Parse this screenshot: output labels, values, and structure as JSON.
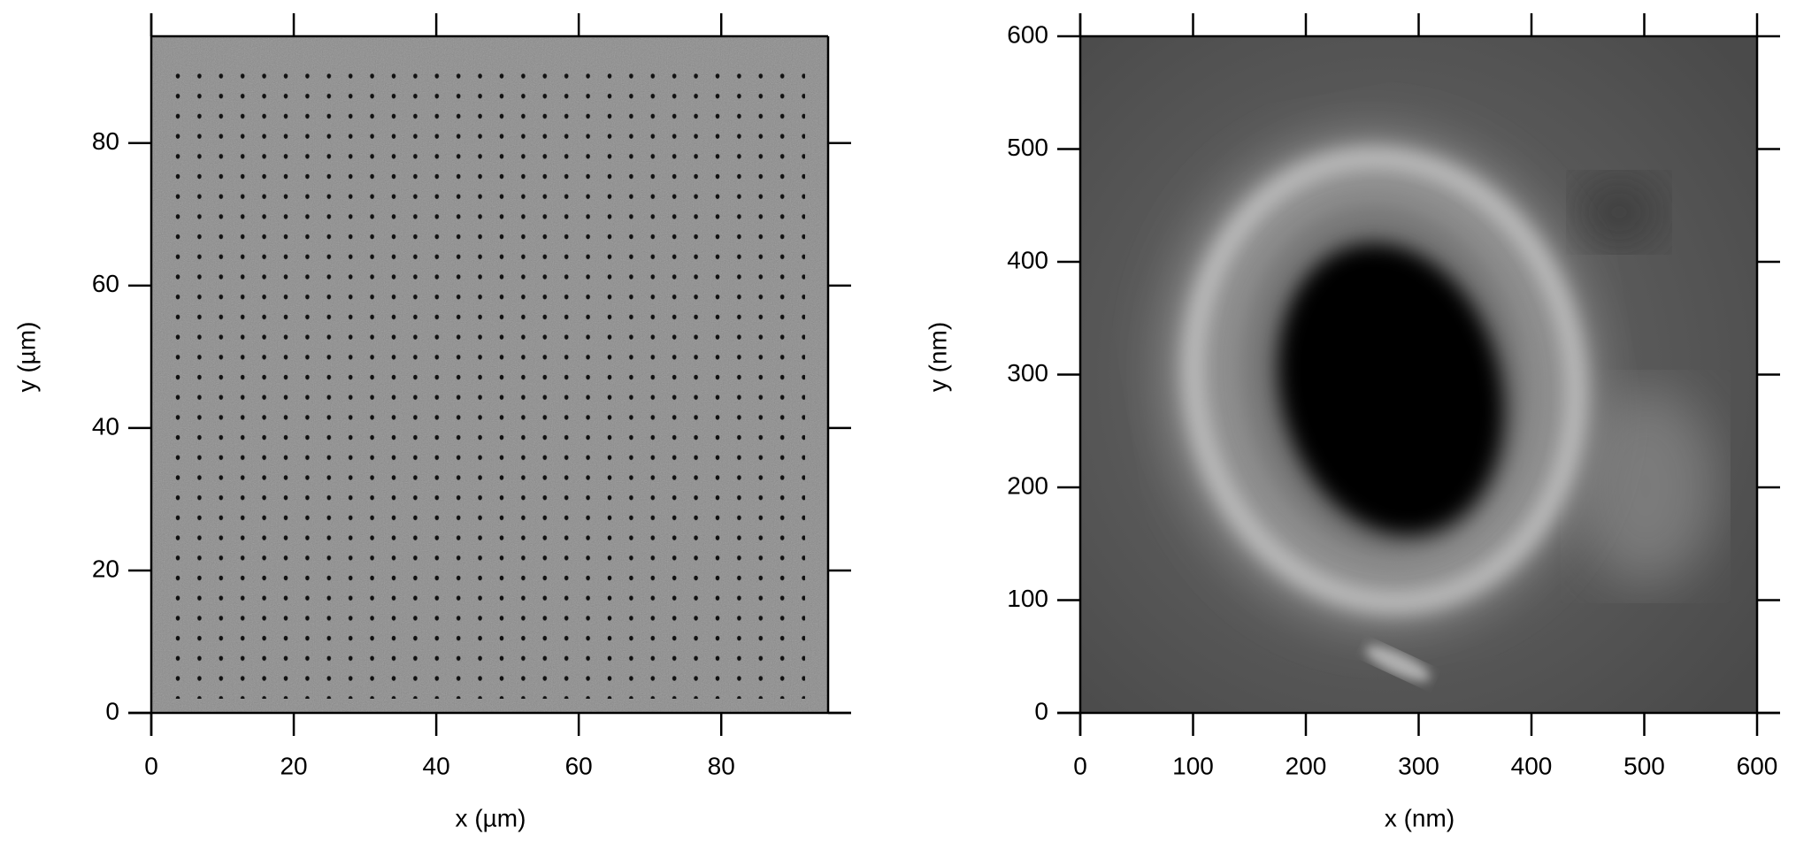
{
  "chart_data": [
    {
      "type": "image",
      "x_label": "x (µm)",
      "y_label": "y (µm)",
      "xlim": [
        0,
        95
      ],
      "ylim": [
        0,
        95
      ],
      "xticks": [
        0,
        20,
        40,
        60,
        80
      ],
      "yticks": [
        0,
        20,
        40,
        60,
        80
      ]
    },
    {
      "type": "image",
      "x_label": "x (nm)",
      "y_label": "y (nm)",
      "xlim": [
        0,
        600
      ],
      "ylim": [
        0,
        600
      ],
      "xticks": [
        0,
        100,
        200,
        300,
        400,
        500,
        600
      ],
      "yticks": [
        0,
        100,
        200,
        300,
        400,
        500,
        600
      ]
    }
  ]
}
